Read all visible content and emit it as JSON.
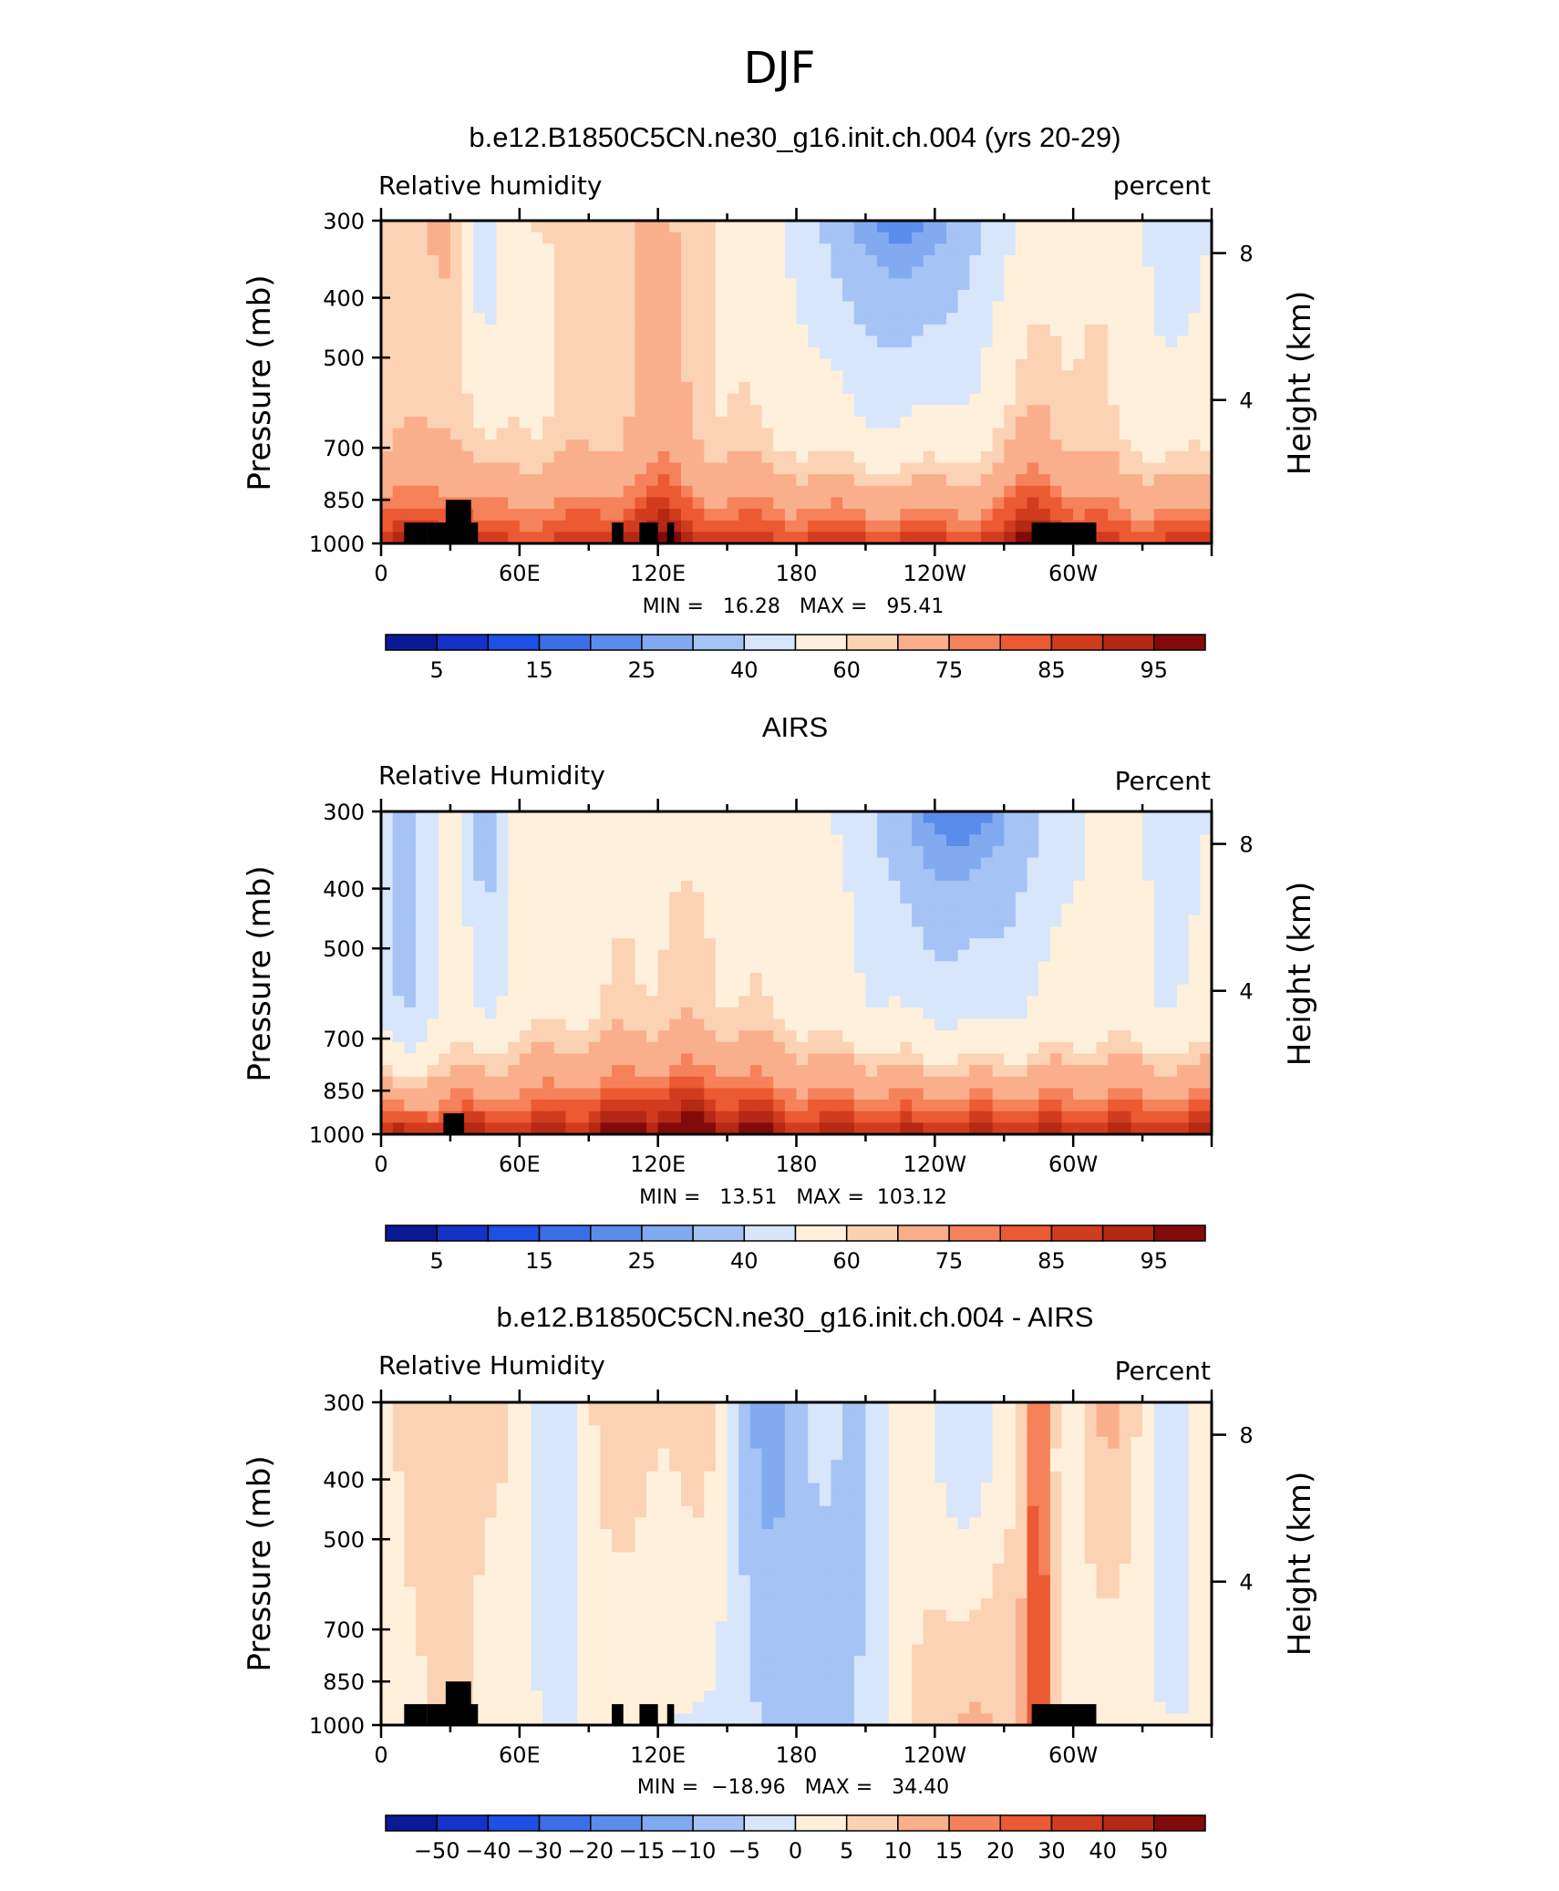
{
  "figure": {
    "season_title": "DJF"
  },
  "chart_data": [
    {
      "type": "heatmap",
      "title": "b.e12.B1850C5CN.ne30_g16.init.ch.004 (yrs 20-29)",
      "left_label": "Relative humidity",
      "right_label": "percent",
      "ylabel": "Pressure (mb)",
      "y2label": "Height (km)",
      "x_ticks": [
        "0",
        "60E",
        "120E",
        "180",
        "120W",
        "60W"
      ],
      "x_tick_lon": [
        0,
        60,
        120,
        180,
        240,
        300
      ],
      "xlim": [
        0,
        360
      ],
      "y_ticks": [
        "300",
        "400",
        "500",
        "700",
        "850",
        "1000"
      ],
      "y_tick_p": [
        300,
        400,
        500,
        700,
        850,
        1000
      ],
      "ylim": [
        1000,
        300
      ],
      "y2_ticks": [
        "8",
        "4"
      ],
      "y2_tick_km": [
        8,
        4
      ],
      "stats": "MIN =   16.28   MAX =   95.41",
      "min": 16.28,
      "max": 95.41,
      "levels": [
        5,
        10,
        15,
        20,
        25,
        30,
        40,
        50,
        60,
        65,
        75,
        80,
        85,
        90,
        95
      ],
      "colorbar_labels": [
        "5",
        "15",
        "25",
        "40",
        "60",
        "75",
        "85",
        "95"
      ],
      "land_blocks": [
        [
          10,
          20,
          1000,
          925
        ],
        [
          20,
          30,
          1000,
          925
        ],
        [
          28,
          39,
          1000,
          850
        ],
        [
          38,
          42,
          1000,
          925
        ],
        [
          100,
          105,
          1000,
          925
        ],
        [
          112,
          120,
          1000,
          925
        ],
        [
          124,
          127,
          1000,
          925
        ],
        [
          282,
          310,
          1000,
          925
        ]
      ]
    },
    {
      "type": "heatmap",
      "title": "AIRS",
      "left_label": "Relative Humidity",
      "right_label": "Percent",
      "ylabel": "Pressure (mb)",
      "y2label": "Height (km)",
      "x_ticks": [
        "0",
        "60E",
        "120E",
        "180",
        "120W",
        "60W"
      ],
      "x_tick_lon": [
        0,
        60,
        120,
        180,
        240,
        300
      ],
      "xlim": [
        0,
        360
      ],
      "y_ticks": [
        "300",
        "400",
        "500",
        "700",
        "850",
        "1000"
      ],
      "y_tick_p": [
        300,
        400,
        500,
        700,
        850,
        1000
      ],
      "ylim": [
        1000,
        300
      ],
      "y2_ticks": [
        "8",
        "4"
      ],
      "y2_tick_km": [
        8,
        4
      ],
      "stats": "MIN =   13.51   MAX =  103.12",
      "min": 13.51,
      "max": 103.12,
      "levels": [
        5,
        10,
        15,
        20,
        25,
        30,
        40,
        50,
        60,
        65,
        75,
        80,
        85,
        90,
        95
      ],
      "colorbar_labels": [
        "5",
        "15",
        "25",
        "40",
        "60",
        "75",
        "85",
        "95"
      ],
      "land_blocks": [
        [
          27,
          36,
          1000,
          925
        ]
      ]
    },
    {
      "type": "heatmap",
      "title": "b.e12.B1850C5CN.ne30_g16.init.ch.004 - AIRS",
      "left_label": "Relative Humidity",
      "right_label": "Percent",
      "ylabel": "Pressure (mb)",
      "y2label": "Height (km)",
      "x_ticks": [
        "0",
        "60E",
        "120E",
        "180",
        "120W",
        "60W"
      ],
      "x_tick_lon": [
        0,
        60,
        120,
        180,
        240,
        300
      ],
      "xlim": [
        0,
        360
      ],
      "y_ticks": [
        "300",
        "400",
        "500",
        "700",
        "850",
        "1000"
      ],
      "y_tick_p": [
        300,
        400,
        500,
        700,
        850,
        1000
      ],
      "ylim": [
        1000,
        300
      ],
      "y2_ticks": [
        "8",
        "4"
      ],
      "y2_tick_km": [
        8,
        4
      ],
      "stats": "MIN =  −18.96   MAX =   34.40",
      "min": -18.96,
      "max": 34.4,
      "levels": [
        -50,
        -40,
        -30,
        -20,
        -15,
        -10,
        -5,
        0,
        5,
        10,
        15,
        20,
        30,
        40,
        50
      ],
      "colorbar_labels": [
        "−50",
        "−40",
        "−30",
        "−20",
        "−15",
        "−10",
        "−5",
        "0",
        "5",
        "10",
        "15",
        "20",
        "30",
        "40",
        "50"
      ],
      "land_blocks": [
        [
          10,
          20,
          1000,
          925
        ],
        [
          20,
          30,
          1000,
          925
        ],
        [
          28,
          39,
          1000,
          850
        ],
        [
          38,
          42,
          1000,
          925
        ],
        [
          100,
          105,
          1000,
          925
        ],
        [
          112,
          120,
          1000,
          925
        ],
        [
          124,
          127,
          1000,
          925
        ],
        [
          282,
          310,
          1000,
          925
        ]
      ]
    }
  ],
  "palette": [
    "#0a1a96",
    "#1432c8",
    "#1e50e6",
    "#3c6ee6",
    "#5a8ceb",
    "#82aaf0",
    "#a5c3f5",
    "#d7e6fa",
    "#fff0dc",
    "#fcd2b4",
    "#faaf8c",
    "#f5825a",
    "#eb5a32",
    "#d23c1e",
    "#b42814",
    "#820a0a"
  ]
}
